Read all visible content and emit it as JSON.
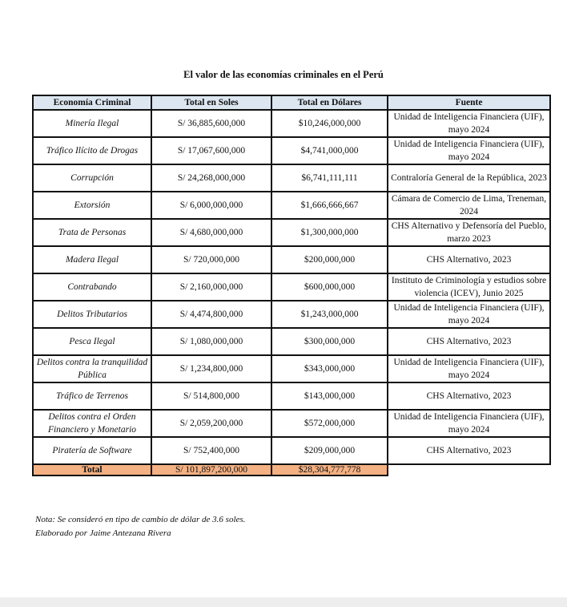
{
  "title": "El valor de las economías criminales en el Perú",
  "table": {
    "headers": [
      "Economía Criminal",
      "Total en Soles",
      "Total en Dólares",
      "Fuente"
    ],
    "rows": [
      {
        "name": "Minería Ilegal",
        "soles": "S/ 36,885,600,000",
        "dolares": "$10,246,000,000",
        "fuente": "Unidad de Inteligencia Financiera (UIF), mayo 2024"
      },
      {
        "name": "Tráfico Ilícito de Drogas",
        "soles": "S/ 17,067,600,000",
        "dolares": "$4,741,000,000",
        "fuente": "Unidad de Inteligencia Financiera (UIF), mayo 2024"
      },
      {
        "name": "Corrupción",
        "soles": "S/ 24,268,000,000",
        "dolares": "$6,741,111,111",
        "fuente": "Contraloría General de la República, 2023"
      },
      {
        "name": "Extorsión",
        "soles": "S/ 6,000,000,000",
        "dolares": "$1,666,666,667",
        "fuente": "Cámara de Comercio de Lima, Treneman, 2024"
      },
      {
        "name": "Trata de Personas",
        "soles": "S/ 4,680,000,000",
        "dolares": "$1,300,000,000",
        "fuente": "CHS Alternativo y Defensoría del Pueblo, marzo 2023"
      },
      {
        "name": "Madera Ilegal",
        "soles": "S/ 720,000,000",
        "dolares": "$200,000,000",
        "fuente": "CHS Alternativo, 2023"
      },
      {
        "name": "Contrabando",
        "soles": "S/ 2,160,000,000",
        "dolares": "$600,000,000",
        "fuente": "Instituto de Criminología y estudios sobre violencia (ICEV), Junio 2025"
      },
      {
        "name": "Delitos Tributarios",
        "soles": "S/ 4,474,800,000",
        "dolares": "$1,243,000,000",
        "fuente": "Unidad de Inteligencia Financiera (UIF), mayo 2024"
      },
      {
        "name": "Pesca Ilegal",
        "soles": "S/ 1,080,000,000",
        "dolares": "$300,000,000",
        "fuente": "CHS Alternativo, 2023"
      },
      {
        "name": "Delitos contra la tranquilidad Pública",
        "soles": "S/ 1,234,800,000",
        "dolares": "$343,000,000",
        "fuente": "Unidad de Inteligencia Financiera (UIF), mayo 2024"
      },
      {
        "name": "Tráfico de Terrenos",
        "soles": "S/ 514,800,000",
        "dolares": "$143,000,000",
        "fuente": "CHS Alternativo, 2023"
      },
      {
        "name": "Delitos contra el Orden Financiero y Monetario",
        "soles": "S/ 2,059,200,000",
        "dolares": "$572,000,000",
        "fuente": "Unidad de Inteligencia Financiera (UIF), mayo 2024"
      },
      {
        "name": "Piratería de Software",
        "soles": "S/ 752,400,000",
        "dolares": "$209,000,000",
        "fuente": "CHS Alternativo, 2023"
      }
    ],
    "total": {
      "label": "Total",
      "soles": "S/ 101,897,200,000",
      "dolares": "$28,304,777,778"
    }
  },
  "notes": {
    "line1": "Nota: Se consideró en tipo de cambio de dólar de 3.6 soles.",
    "line2": "Elaborado por Jaime Antezana Rivera"
  },
  "colors": {
    "header_bg": "#dce6f1",
    "total_bg": "#f4b183"
  }
}
